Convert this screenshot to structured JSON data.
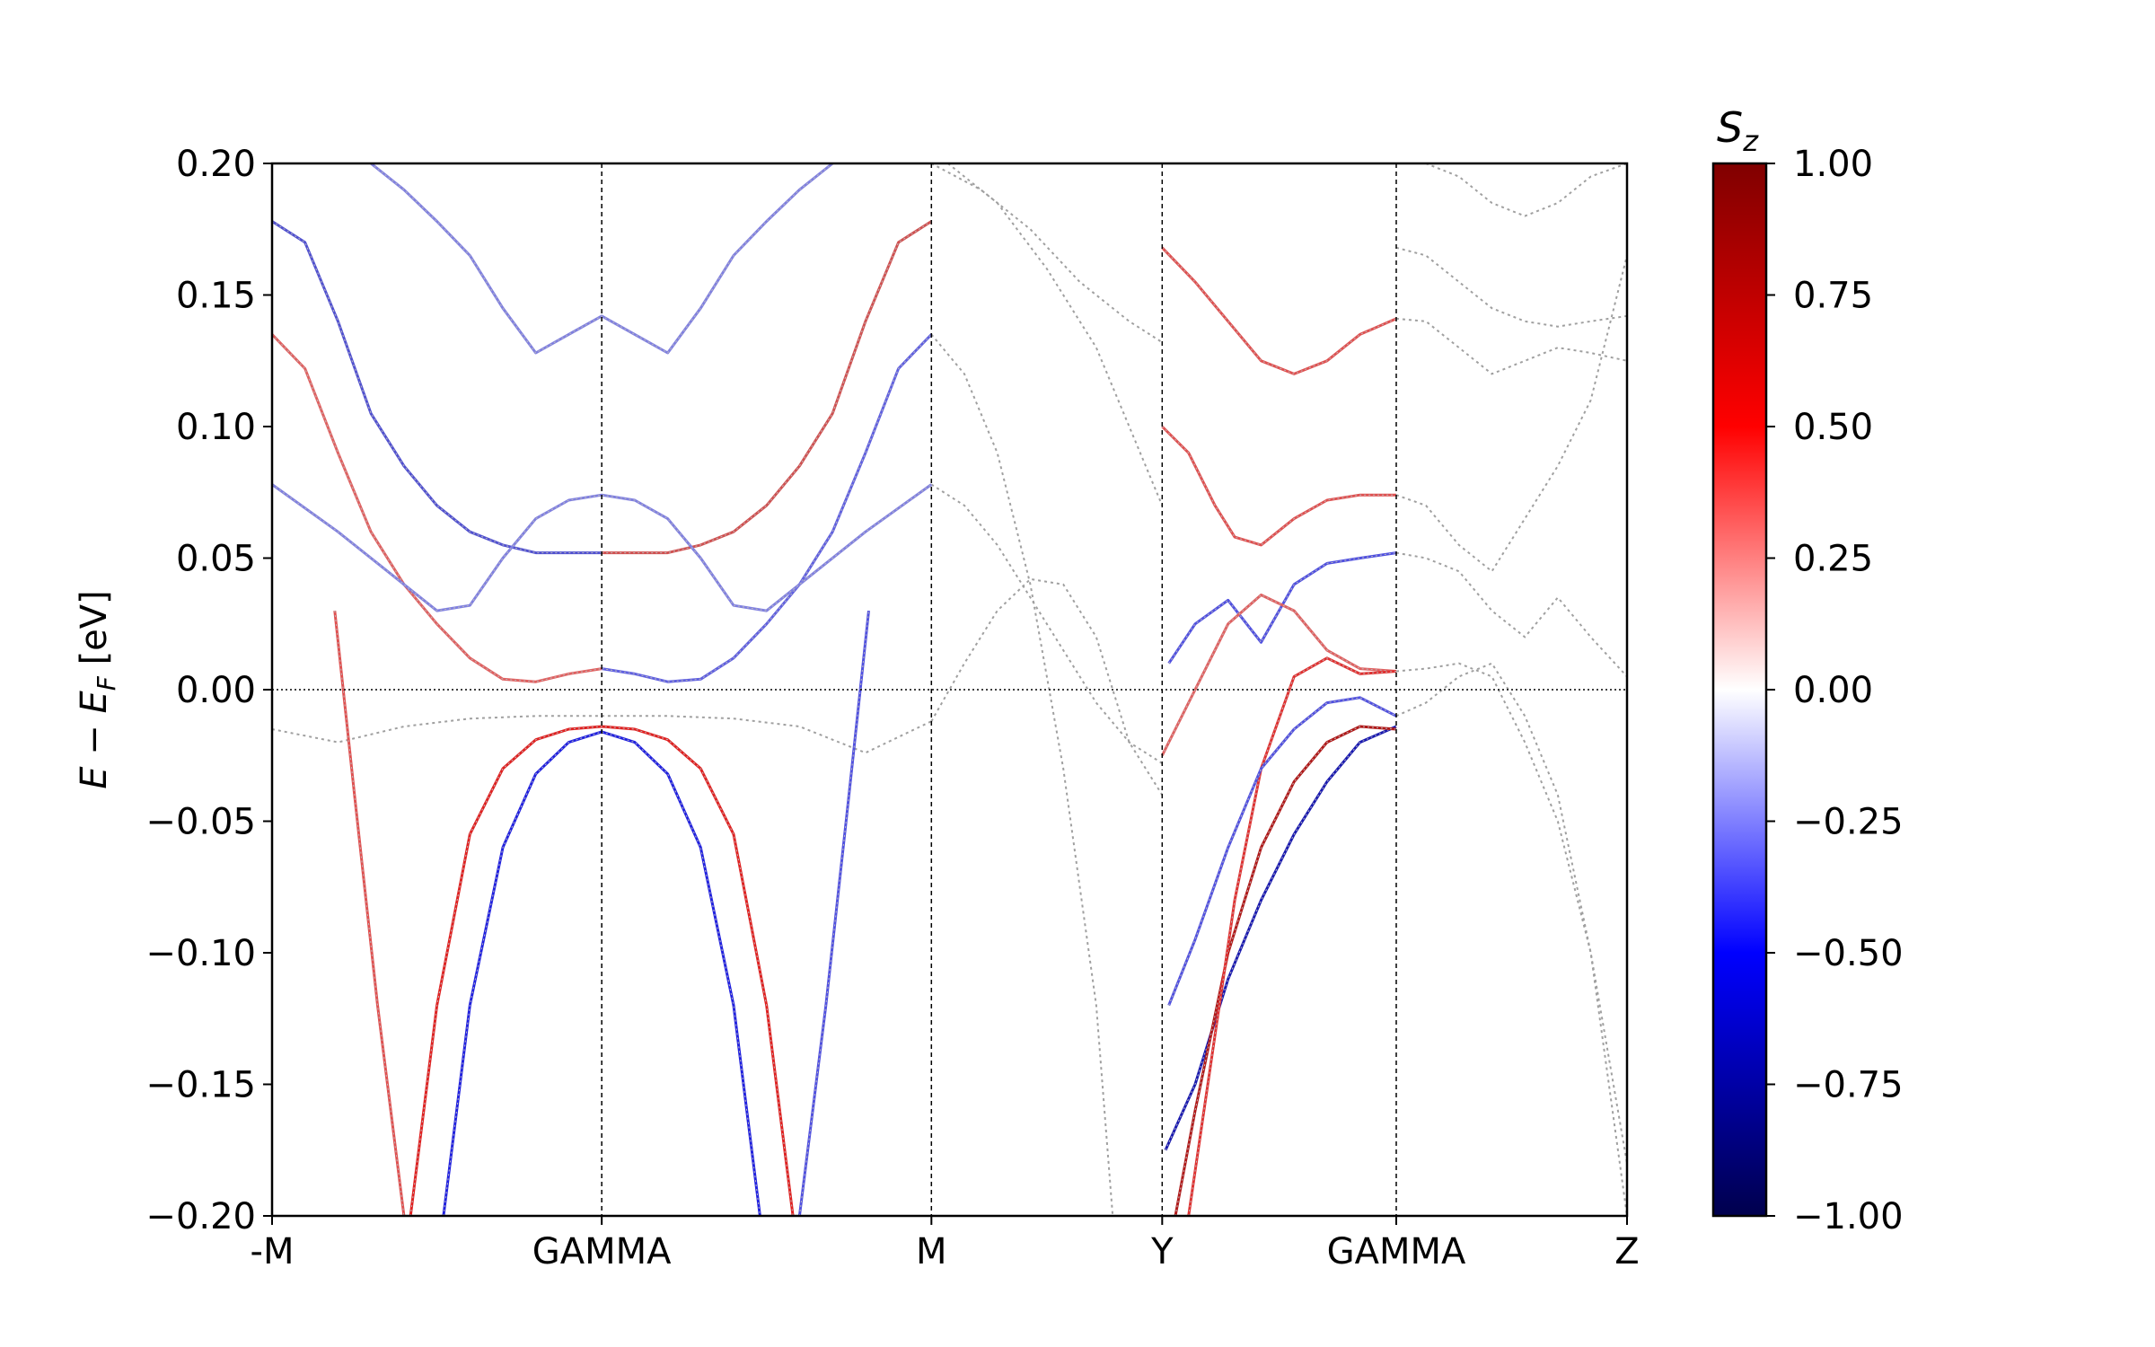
{
  "chart_data": {
    "type": "line",
    "title": "",
    "xlabel": "",
    "ylabel": {
      "main": "E",
      "op": " − ",
      "sub_main": "E",
      "sub": "F",
      "units": " [eV]"
    },
    "ylim": [
      -0.2,
      0.2
    ],
    "yticks": [
      {
        "value": 0.2,
        "label": "0.20"
      },
      {
        "value": 0.15,
        "label": "0.15"
      },
      {
        "value": 0.1,
        "label": "0.10"
      },
      {
        "value": 0.05,
        "label": "0.05"
      },
      {
        "value": 0.0,
        "label": "0.00"
      },
      {
        "value": -0.05,
        "label": "−0.05"
      },
      {
        "value": -0.1,
        "label": "−0.10"
      },
      {
        "value": -0.15,
        "label": "−0.15"
      },
      {
        "value": -0.2,
        "label": "−0.20"
      }
    ],
    "xlim": [
      0,
      4.11
    ],
    "kpoints": [
      {
        "x": 0.0,
        "label": "-M"
      },
      {
        "x": 1.0,
        "label": "GAMMA"
      },
      {
        "x": 2.0,
        "label": "M"
      },
      {
        "x": 2.7,
        "label": "Y"
      },
      {
        "x": 3.41,
        "label": "GAMMA"
      },
      {
        "x": 4.11,
        "label": "Z"
      }
    ],
    "fermi_level": 0.0,
    "colorbar": {
      "title": {
        "main": "S",
        "sub": "z"
      },
      "cmap": "seismic",
      "range": [
        -1.0,
        1.0
      ],
      "ticks": [
        {
          "value": 1.0,
          "label": "1.00"
        },
        {
          "value": 0.75,
          "label": "0.75"
        },
        {
          "value": 0.5,
          "label": "0.50"
        },
        {
          "value": 0.25,
          "label": "0.25"
        },
        {
          "value": 0.0,
          "label": "0.00"
        },
        {
          "value": -0.25,
          "label": "−0.25"
        },
        {
          "value": -0.5,
          "label": "−0.50"
        },
        {
          "value": -0.75,
          "label": "−0.75"
        },
        {
          "value": -1.0,
          "label": "−1.00"
        }
      ],
      "stops": [
        "#00004d",
        "#0000ff",
        "#ffffff",
        "#ff0000",
        "#800000"
      ]
    },
    "colored_bands": [
      {
        "color": "#2020e0",
        "x": [
          0.52,
          0.6,
          0.7,
          0.8,
          0.9,
          1.0,
          1.1,
          1.2,
          1.3,
          1.4,
          1.48
        ],
        "y": [
          -0.2,
          -0.12,
          -0.06,
          -0.032,
          -0.02,
          -0.016,
          -0.02,
          -0.032,
          -0.06,
          -0.12,
          -0.2
        ]
      },
      {
        "color": "#e02020",
        "x": [
          0.42,
          0.5,
          0.6,
          0.7,
          0.8,
          0.9,
          1.0,
          1.1,
          1.2,
          1.3,
          1.4,
          1.5,
          1.58
        ],
        "y": [
          -0.2,
          -0.12,
          -0.055,
          -0.03,
          -0.019,
          -0.015,
          -0.014,
          -0.015,
          -0.019,
          -0.03,
          -0.055,
          -0.12,
          -0.2
        ]
      },
      {
        "color": "#e05050",
        "x": [
          0.19,
          0.25,
          0.32,
          0.4
        ],
        "y": [
          0.03,
          -0.04,
          -0.12,
          -0.2
        ]
      },
      {
        "color": "#5050e0",
        "x": [
          1.6,
          1.68,
          1.75,
          1.81
        ],
        "y": [
          -0.2,
          -0.12,
          -0.04,
          0.03
        ]
      },
      {
        "color": "#e06060",
        "x": [
          0.0,
          0.1,
          0.2,
          0.3,
          0.4,
          0.5,
          0.6,
          0.7,
          0.8,
          0.9,
          1.0
        ],
        "y": [
          0.135,
          0.122,
          0.09,
          0.06,
          0.04,
          0.025,
          0.012,
          0.004,
          0.003,
          0.006,
          0.008
        ]
      },
      {
        "color": "#6060e0",
        "x": [
          1.0,
          1.1,
          1.2,
          1.3,
          1.4,
          1.5,
          1.6,
          1.7,
          1.8,
          1.9,
          2.0
        ],
        "y": [
          0.008,
          0.006,
          0.003,
          0.004,
          0.012,
          0.025,
          0.04,
          0.06,
          0.09,
          0.122,
          0.135
        ]
      },
      {
        "color": "#5050d0",
        "x": [
          0.0,
          0.1,
          0.2,
          0.3,
          0.4,
          0.5,
          0.6,
          0.7,
          0.8,
          0.9,
          1.0
        ],
        "y": [
          0.178,
          0.17,
          0.14,
          0.105,
          0.085,
          0.07,
          0.06,
          0.055,
          0.052,
          0.052,
          0.052
        ]
      },
      {
        "color": "#d05050",
        "x": [
          1.0,
          1.1,
          1.2,
          1.3,
          1.4,
          1.5,
          1.6,
          1.7,
          1.8,
          1.9,
          2.0
        ],
        "y": [
          0.052,
          0.052,
          0.052,
          0.055,
          0.06,
          0.07,
          0.085,
          0.105,
          0.14,
          0.17,
          0.178
        ]
      },
      {
        "color": "#8080e0",
        "x": [
          0.3,
          0.4,
          0.5,
          0.6,
          0.7,
          0.8,
          0.9,
          1.0,
          1.1,
          1.2,
          1.3,
          1.4,
          1.5,
          1.6,
          1.7
        ],
        "y": [
          0.2,
          0.19,
          0.178,
          0.165,
          0.145,
          0.128,
          0.135,
          0.142,
          0.135,
          0.128,
          0.145,
          0.165,
          0.178,
          0.19,
          0.2
        ]
      },
      {
        "color": "#8080e0",
        "x": [
          0.0,
          0.2,
          0.4,
          0.5,
          0.6,
          0.7,
          0.8,
          0.9,
          1.0,
          1.1,
          1.2,
          1.3,
          1.4,
          1.5,
          1.6,
          1.8,
          2.0
        ],
        "y": [
          0.078,
          0.06,
          0.04,
          0.03,
          0.032,
          0.05,
          0.065,
          0.072,
          0.074,
          0.072,
          0.065,
          0.05,
          0.032,
          0.03,
          0.04,
          0.06,
          0.078
        ]
      },
      {
        "color": "#e05050",
        "x": [
          2.7,
          2.8,
          2.9,
          3.0,
          3.1,
          3.2,
          3.3,
          3.41
        ],
        "y": [
          0.168,
          0.155,
          0.14,
          0.125,
          0.12,
          0.125,
          0.135,
          0.141
        ]
      },
      {
        "color": "#e05050",
        "x": [
          2.7,
          2.78,
          2.86,
          2.92,
          3.0,
          3.1,
          3.2,
          3.3,
          3.41
        ],
        "y": [
          0.1,
          0.09,
          0.07,
          0.058,
          0.055,
          0.065,
          0.072,
          0.074,
          0.074
        ]
      },
      {
        "color": "#5050e0",
        "x": [
          2.72,
          2.8,
          2.9,
          3.0,
          3.1,
          3.2,
          3.3,
          3.41
        ],
        "y": [
          0.01,
          0.025,
          0.034,
          0.018,
          0.04,
          0.048,
          0.05,
          0.052
        ]
      },
      {
        "color": "#e06060",
        "x": [
          2.7,
          2.8,
          2.9,
          3.0,
          3.1,
          3.2,
          3.3,
          3.41
        ],
        "y": [
          -0.025,
          0.0,
          0.025,
          0.036,
          0.03,
          0.015,
          0.008,
          0.007
        ]
      },
      {
        "color": "#1818b0",
        "x": [
          2.71,
          2.8,
          2.9,
          3.0,
          3.1,
          3.2,
          3.3,
          3.41
        ],
        "y": [
          -0.175,
          -0.15,
          -0.11,
          -0.08,
          -0.055,
          -0.035,
          -0.02,
          -0.014
        ]
      },
      {
        "color": "#b01818",
        "x": [
          2.74,
          2.8,
          2.9,
          3.0,
          3.1,
          3.2,
          3.3,
          3.41
        ],
        "y": [
          -0.2,
          -0.16,
          -0.1,
          -0.06,
          -0.035,
          -0.02,
          -0.014,
          -0.015
        ]
      },
      {
        "color": "#e03030",
        "x": [
          2.78,
          2.85,
          2.92,
          3.0,
          3.1,
          3.2,
          3.3,
          3.41
        ],
        "y": [
          -0.2,
          -0.14,
          -0.08,
          -0.03,
          0.005,
          0.012,
          0.006,
          0.007
        ]
      },
      {
        "color": "#5050e0",
        "x": [
          2.72,
          2.8,
          2.9,
          3.0,
          3.1,
          3.2,
          3.3,
          3.41
        ],
        "y": [
          -0.12,
          -0.095,
          -0.06,
          -0.03,
          -0.015,
          -0.005,
          -0.003,
          -0.01
        ]
      }
    ],
    "gray_bands": [
      {
        "color": "#a0a0a0",
        "x": [
          0.0,
          0.2,
          0.4,
          0.6,
          0.8,
          1.0,
          1.2,
          1.4,
          1.6,
          1.8,
          2.0
        ],
        "y": [
          -0.015,
          -0.02,
          -0.014,
          -0.011,
          -0.01,
          -0.01,
          -0.01,
          -0.011,
          -0.014,
          -0.024,
          -0.012
        ]
      },
      {
        "color": "#a0a0a0",
        "x": [
          2.0,
          2.1,
          2.2,
          2.3,
          2.4,
          2.5,
          2.6,
          2.7
        ],
        "y": [
          0.078,
          0.07,
          0.055,
          0.035,
          0.015,
          -0.005,
          -0.02,
          -0.028
        ]
      },
      {
        "color": "#a0a0a0",
        "x": [
          2.0,
          2.1,
          2.2,
          2.3,
          2.4,
          2.5,
          2.6,
          2.7
        ],
        "y": [
          -0.012,
          0.01,
          0.03,
          0.042,
          0.04,
          0.02,
          -0.02,
          -0.04
        ]
      },
      {
        "color": "#a0a0a0",
        "x": [
          2.0,
          2.1,
          2.2,
          2.3,
          2.4,
          2.5,
          2.55
        ],
        "y": [
          0.135,
          0.12,
          0.09,
          0.04,
          -0.03,
          -0.12,
          -0.2
        ]
      },
      {
        "color": "#a0a0a0",
        "x": [
          2.0,
          2.15,
          2.3,
          2.45,
          2.6,
          2.7
        ],
        "y": [
          0.2,
          0.19,
          0.175,
          0.155,
          0.14,
          0.132
        ]
      },
      {
        "color": "#a0a0a0",
        "x": [
          2.05,
          2.2,
          2.35,
          2.5,
          2.6,
          2.7
        ],
        "y": [
          0.2,
          0.185,
          0.16,
          0.13,
          0.1,
          0.07
        ]
      },
      {
        "color": "#a0a0a0",
        "x": [
          3.41,
          3.5,
          3.6,
          3.7,
          3.8,
          3.9,
          4.0,
          4.11
        ],
        "y": [
          0.168,
          0.165,
          0.155,
          0.145,
          0.14,
          0.138,
          0.14,
          0.142
        ]
      },
      {
        "color": "#a0a0a0",
        "x": [
          3.41,
          3.5,
          3.6,
          3.7,
          3.8,
          3.9,
          4.0,
          4.11
        ],
        "y": [
          0.141,
          0.14,
          0.13,
          0.12,
          0.125,
          0.13,
          0.128,
          0.125
        ]
      },
      {
        "color": "#a0a0a0",
        "x": [
          3.41,
          3.5,
          3.6,
          3.7,
          3.8,
          3.9,
          4.0,
          4.11
        ],
        "y": [
          0.074,
          0.07,
          0.055,
          0.045,
          0.065,
          0.085,
          0.11,
          0.165
        ]
      },
      {
        "color": "#a0a0a0",
        "x": [
          3.41,
          3.5,
          3.6,
          3.7,
          3.8,
          3.9,
          4.0,
          4.11
        ],
        "y": [
          0.052,
          0.05,
          0.045,
          0.03,
          0.02,
          0.035,
          0.02,
          0.005
        ]
      },
      {
        "color": "#a0a0a0",
        "x": [
          3.41,
          3.5,
          3.6,
          3.7,
          3.8,
          3.9,
          4.0,
          4.11
        ],
        "y": [
          0.007,
          0.008,
          0.01,
          0.005,
          -0.02,
          -0.05,
          -0.1,
          -0.2
        ]
      },
      {
        "color": "#a0a0a0",
        "x": [
          3.41,
          3.5,
          3.6,
          3.7,
          3.8,
          3.9,
          4.0,
          4.11
        ],
        "y": [
          -0.01,
          -0.005,
          0.005,
          0.01,
          -0.01,
          -0.04,
          -0.1,
          -0.18
        ]
      },
      {
        "color": "#a0a0a0",
        "x": [
          3.5,
          3.6,
          3.7,
          3.8,
          3.9,
          4.0,
          4.11
        ],
        "y": [
          0.2,
          0.195,
          0.185,
          0.18,
          0.185,
          0.195,
          0.2
        ]
      }
    ]
  }
}
